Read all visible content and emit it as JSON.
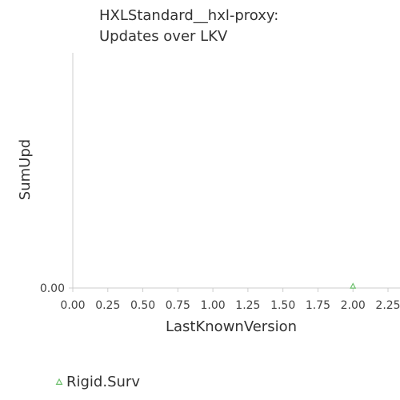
{
  "chart_data": {
    "type": "scatter",
    "title": [
      "HXLStandard__hxl-proxy:",
      "Updates over LKV"
    ],
    "xlabel": "LastKnownVersion",
    "ylabel": "SumUpd",
    "xlim": [
      0,
      2.25
    ],
    "ylim": [
      0,
      1
    ],
    "x_ticks": [
      "0.00",
      "0.25",
      "0.50",
      "0.75",
      "1.00",
      "1.25",
      "1.50",
      "1.75",
      "2.00",
      "2.25"
    ],
    "y_ticks": [
      "0.00"
    ],
    "grid": false,
    "legend_position": "bottom-left",
    "series": [
      {
        "name": "Rigid.Surv",
        "marker": "triangle",
        "color": "#6cbf6c",
        "points": [
          {
            "x": 2.0,
            "y": 0.0
          }
        ]
      }
    ]
  }
}
